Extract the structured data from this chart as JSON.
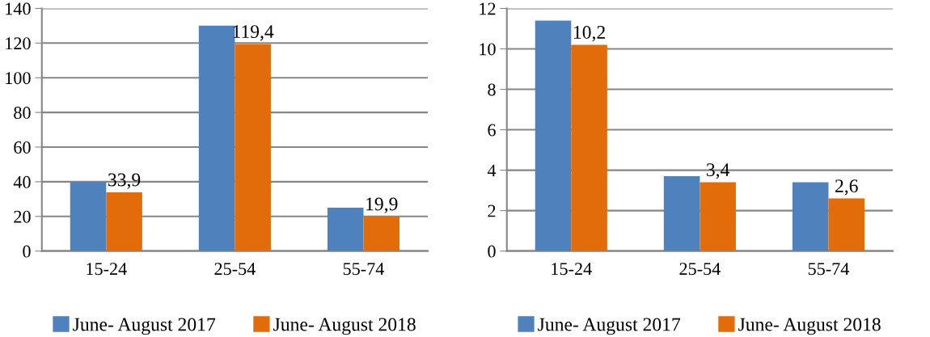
{
  "chart_data": [
    {
      "type": "bar",
      "categories": [
        "15-24",
        "25-54",
        "55-74"
      ],
      "ylim": [
        0,
        140
      ],
      "yticks": [
        0,
        20,
        40,
        60,
        80,
        100,
        120,
        140
      ],
      "grid": "y",
      "legend": "bottom",
      "series": [
        {
          "name": "June- August 2017",
          "color": "#4f81bd",
          "values": [
            40,
            130,
            25
          ]
        },
        {
          "name": "June- August 2018",
          "color": "#e36c0a",
          "values": [
            33.9,
            119.4,
            19.9
          ],
          "value_labels": [
            "33,9",
            "119,4",
            "19,9"
          ]
        }
      ]
    },
    {
      "type": "bar",
      "categories": [
        "15-24",
        "25-54",
        "55-74"
      ],
      "ylim": [
        0,
        12
      ],
      "yticks": [
        0,
        2,
        4,
        6,
        8,
        10,
        12
      ],
      "grid": "y",
      "legend": "bottom",
      "series": [
        {
          "name": "June- August 2017",
          "color": "#4f81bd",
          "values": [
            11.4,
            3.7,
            3.4
          ]
        },
        {
          "name": "June- August 2018",
          "color": "#e36c0a",
          "values": [
            10.2,
            3.4,
            2.6
          ],
          "value_labels": [
            "10,2",
            "3,4",
            "2,6"
          ]
        }
      ]
    }
  ]
}
